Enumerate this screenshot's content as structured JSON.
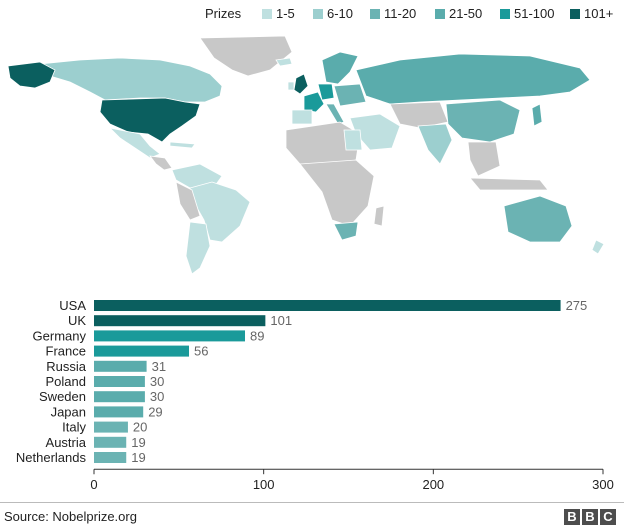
{
  "legend": {
    "title": "Prizes",
    "items": [
      {
        "label": "1-5",
        "color": "#bfe0e0"
      },
      {
        "label": "6-10",
        "color": "#9ccfcf"
      },
      {
        "label": "11-20",
        "color": "#6bb3b3"
      },
      {
        "label": "21-50",
        "color": "#5aacac"
      },
      {
        "label": "51-100",
        "color": "#1a9a9a"
      },
      {
        "label": "101+",
        "color": "#0b5f5f"
      }
    ]
  },
  "map": {
    "no_data_color": "#c8c8c8"
  },
  "chart_data": {
    "type": "bar",
    "orientation": "horizontal",
    "categories": [
      "USA",
      "UK",
      "Germany",
      "France",
      "Russia",
      "Poland",
      "Sweden",
      "Japan",
      "Italy",
      "Austria",
      "Netherlands"
    ],
    "values": [
      275,
      101,
      89,
      56,
      31,
      30,
      30,
      29,
      20,
      19,
      19
    ],
    "bar_colors": [
      "#0b5f5f",
      "#0b5f5f",
      "#1a9a9a",
      "#1a9a9a",
      "#5aacac",
      "#5aacac",
      "#5aacac",
      "#5aacac",
      "#6bb3b3",
      "#6bb3b3",
      "#6bb3b3"
    ],
    "xlim": [
      0,
      300
    ],
    "xticks": [
      0,
      100,
      200,
      300
    ],
    "grid": false
  },
  "footer": {
    "source": "Source: Nobelprize.org",
    "logo_letters": [
      "B",
      "B",
      "C"
    ]
  }
}
